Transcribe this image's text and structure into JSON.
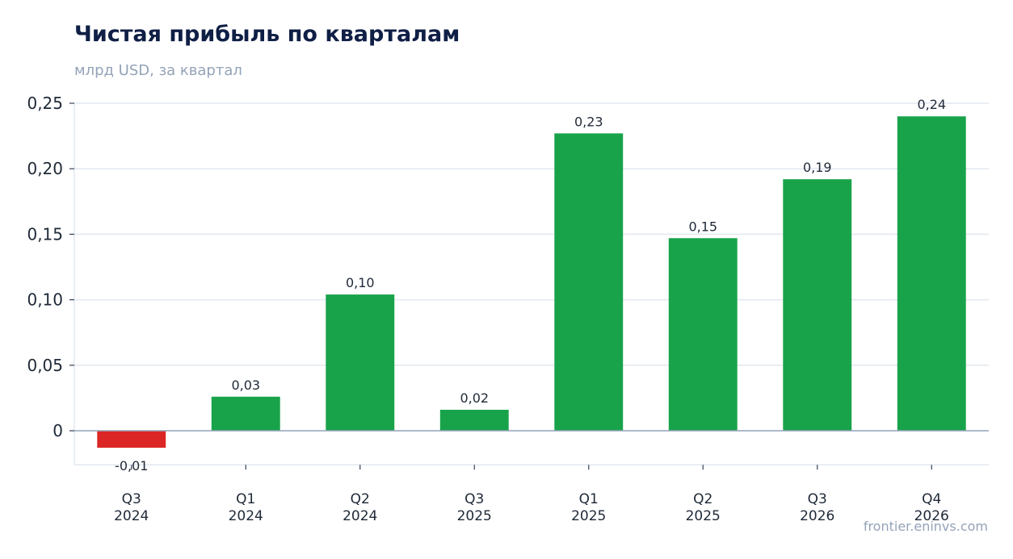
{
  "chart_data": {
    "type": "bar",
    "title": "Чистая прибыль по кварталам",
    "subtitle": "млрд USD, за квартал",
    "categories": [
      [
        "Q3",
        "2024"
      ],
      [
        "Q1",
        "2024"
      ],
      [
        "Q2",
        "2024"
      ],
      [
        "Q3",
        "2025"
      ],
      [
        "Q1",
        "2025"
      ],
      [
        "Q2",
        "2025"
      ],
      [
        "Q3",
        "2026"
      ],
      [
        "Q4",
        "2026"
      ]
    ],
    "values": [
      -0.013,
      0.026,
      0.104,
      0.016,
      0.227,
      0.147,
      0.192,
      0.24
    ],
    "data_labels": [
      "-0,01",
      "0,03",
      "0,10",
      "0,02",
      "0,23",
      "0,15",
      "0,19",
      "0,24"
    ],
    "yticks": [
      0,
      0.05,
      0.1,
      0.15,
      0.2,
      0.25
    ],
    "ytick_labels": [
      "0",
      "0,05",
      "0,10",
      "0,15",
      "0,20",
      "0,25"
    ],
    "ylim": [
      -0.026,
      0.25
    ],
    "grid": true,
    "colors": {
      "positive": "#18a34a",
      "negative": "#dc2626",
      "grid": "#e2e8f0",
      "zero_line": "#94a3b8"
    }
  },
  "source": "frontier.eninvs.com"
}
